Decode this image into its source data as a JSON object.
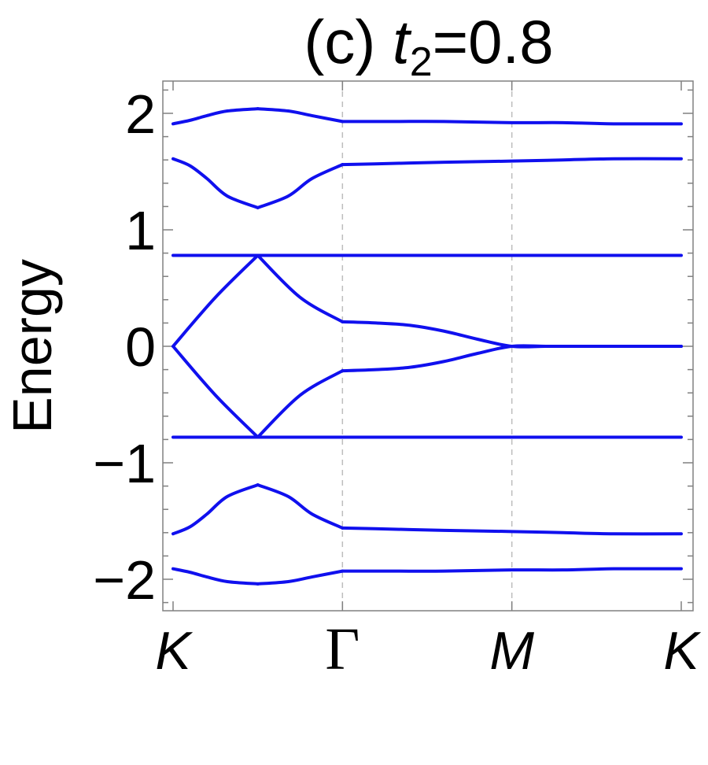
{
  "chart_data": {
    "type": "line",
    "title": {
      "prefix": "(c) ",
      "var": "t",
      "sub": "2",
      "suffix": "=0.8"
    },
    "ylabel": "Energy",
    "xlabel": "",
    "x_ticks": [
      {
        "label": "K",
        "italic": true
      },
      {
        "label": "Γ",
        "italic": false
      },
      {
        "label": "M",
        "italic": true
      },
      {
        "label": "K",
        "italic": true
      }
    ],
    "y_ticks": [
      {
        "value": 2,
        "label": "2"
      },
      {
        "value": 1,
        "label": "1"
      },
      {
        "value": 0,
        "label": "0"
      },
      {
        "value": -1,
        "label": "−1"
      },
      {
        "value": -2,
        "label": "−2"
      }
    ],
    "ylim": [
      -2.27,
      2.27
    ],
    "grid": "vertical dashed lines at Γ and M",
    "line_color": "#1010ee",
    "series": [
      {
        "x": [
          0,
          0.1,
          0.2,
          0.32,
          0.5,
          0.68,
          0.82,
          1,
          1.3,
          1.6,
          2,
          2.3,
          2.6,
          3
        ],
        "y": [
          1.91,
          1.94,
          1.98,
          2.02,
          2.04,
          2.02,
          1.98,
          1.93,
          1.93,
          1.93,
          1.92,
          1.92,
          1.91,
          1.91
        ]
      },
      {
        "x": [
          0,
          0.1,
          0.2,
          0.32,
          0.5,
          0.68,
          0.82,
          1,
          1.3,
          1.6,
          2,
          2.3,
          2.6,
          3
        ],
        "y": [
          1.61,
          1.55,
          1.44,
          1.29,
          1.19,
          1.29,
          1.44,
          1.56,
          1.57,
          1.58,
          1.59,
          1.6,
          1.61,
          1.61
        ]
      },
      {
        "x": [
          0,
          3
        ],
        "y": [
          0.78,
          0.78
        ]
      },
      {
        "x": [
          0,
          0.25,
          0.5,
          0.75,
          1,
          1.2,
          1.4,
          1.6,
          1.8,
          2,
          2.2,
          2.4,
          2.6,
          2.8,
          3
        ],
        "y": [
          0.0,
          0.42,
          0.78,
          0.42,
          0.21,
          0.2,
          0.18,
          0.13,
          0.06,
          0.0,
          0.0,
          0.0,
          0.0,
          0.0,
          0.0
        ]
      },
      {
        "x": [
          0,
          0.25,
          0.5,
          0.75,
          1,
          1.2,
          1.4,
          1.6,
          1.8,
          2,
          2.2,
          2.4,
          2.6,
          2.8,
          3
        ],
        "y": [
          0.0,
          -0.42,
          -0.78,
          -0.42,
          -0.21,
          -0.2,
          -0.18,
          -0.13,
          -0.06,
          0.0,
          0.0,
          0.0,
          0.0,
          0.0,
          0.0
        ]
      },
      {
        "x": [
          0,
          3
        ],
        "y": [
          -0.78,
          -0.78
        ]
      },
      {
        "x": [
          0,
          0.1,
          0.2,
          0.32,
          0.5,
          0.68,
          0.82,
          1,
          1.3,
          1.6,
          2,
          2.3,
          2.6,
          3
        ],
        "y": [
          -1.61,
          -1.55,
          -1.44,
          -1.29,
          -1.19,
          -1.29,
          -1.44,
          -1.56,
          -1.57,
          -1.58,
          -1.59,
          -1.6,
          -1.61,
          -1.61
        ]
      },
      {
        "x": [
          0,
          0.1,
          0.2,
          0.32,
          0.5,
          0.68,
          0.82,
          1,
          1.3,
          1.6,
          2,
          2.3,
          2.6,
          3
        ],
        "y": [
          -1.91,
          -1.94,
          -1.98,
          -2.02,
          -2.04,
          -2.02,
          -1.98,
          -1.93,
          -1.93,
          -1.93,
          -1.92,
          -1.92,
          -1.91,
          -1.91
        ]
      }
    ]
  }
}
